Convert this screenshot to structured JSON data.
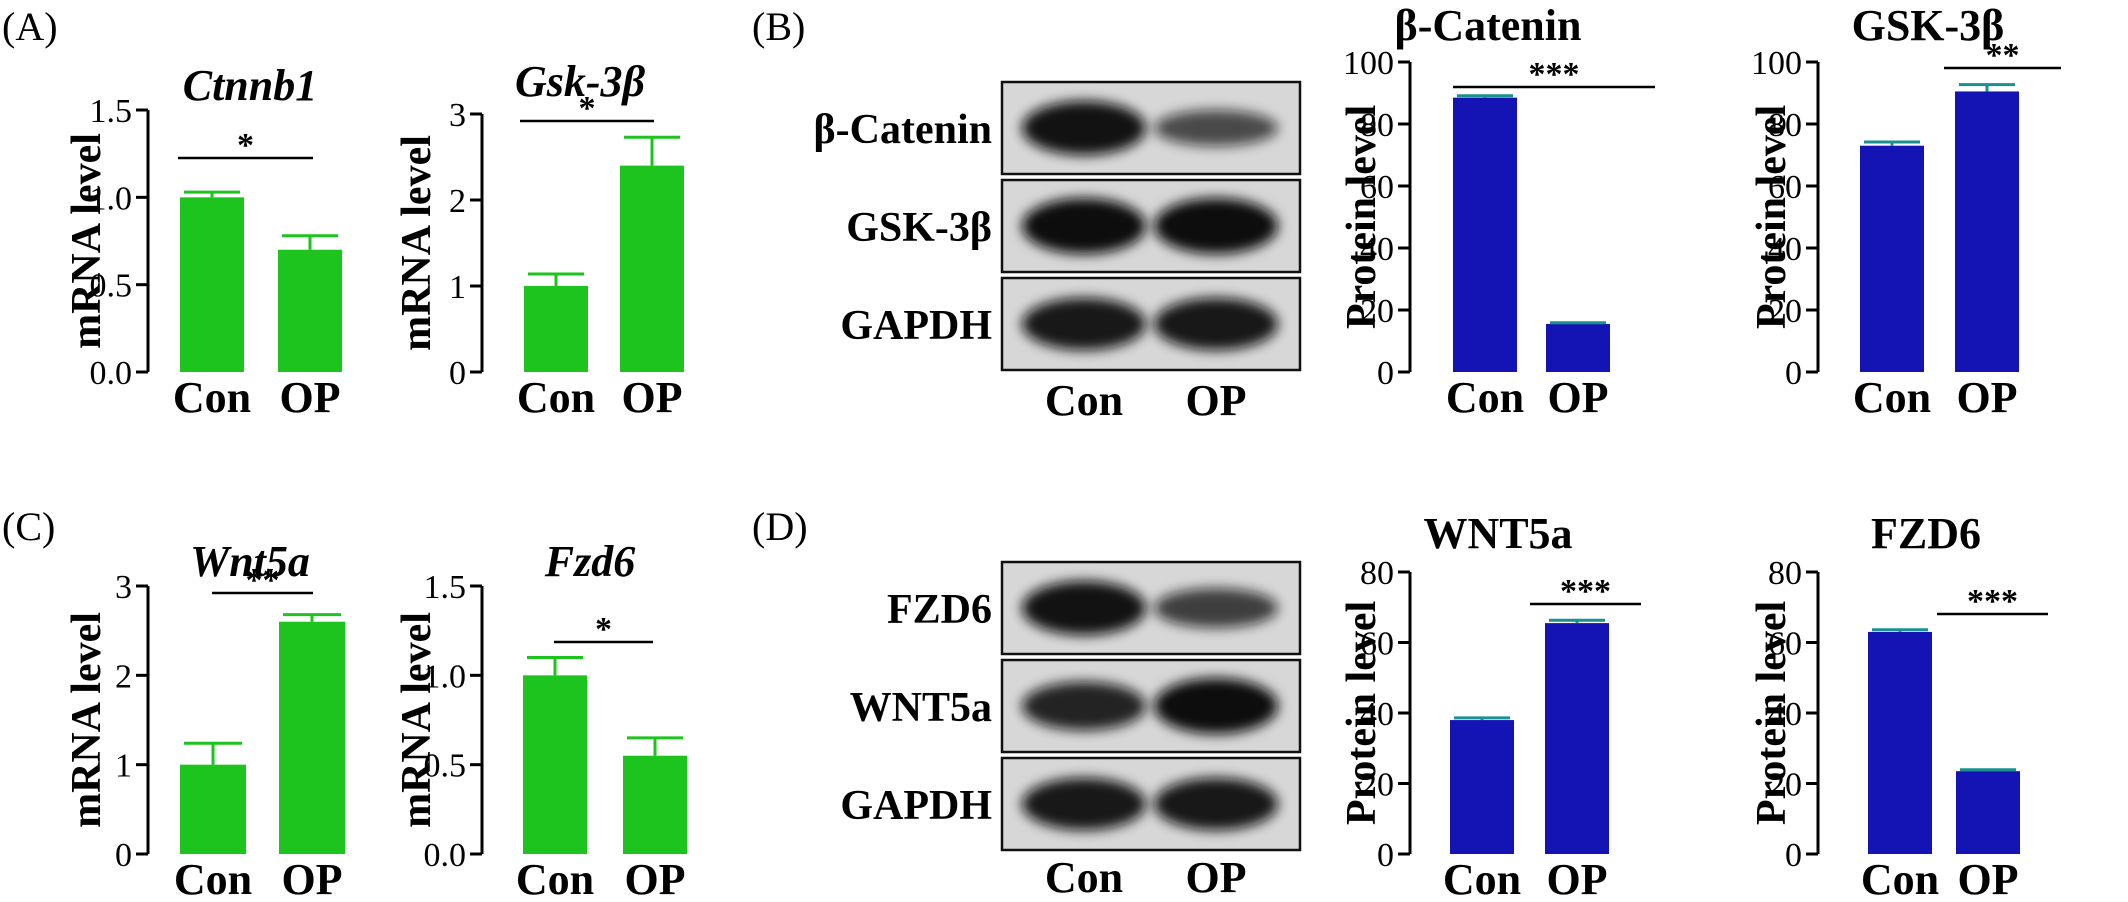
{
  "colors": {
    "mrna_bar": "#1ec41e",
    "protein_bar": "#1414b4",
    "protein_errbar": "#1a9090",
    "axis": "#000000"
  },
  "panel_labels": {
    "A": "(A)",
    "B": "(B)",
    "C": "(C)",
    "D": "(D)"
  },
  "chart_data": [
    {
      "id": "ctnnb1",
      "type": "bar",
      "panel": "A",
      "title": "Ctnnb1",
      "title_italic": true,
      "xlabel": "",
      "ylabel": "mRNA level",
      "categories": [
        "Con",
        "OP"
      ],
      "values": [
        1.0,
        0.7
      ],
      "errors": [
        0.03,
        0.08
      ],
      "ylim": [
        0,
        1.5
      ],
      "yticks": [
        "0.0",
        "0.5",
        "1.0",
        "1.5"
      ],
      "significance": "*",
      "color": "#1ec41e"
    },
    {
      "id": "gsk3b",
      "type": "bar",
      "panel": "A",
      "title": "Gsk-3β",
      "title_italic": true,
      "xlabel": "",
      "ylabel": "mRNA level",
      "categories": [
        "Con",
        "OP"
      ],
      "values": [
        1.0,
        2.4
      ],
      "errors": [
        0.14,
        0.33
      ],
      "ylim": [
        0,
        3
      ],
      "yticks": [
        "0",
        "1",
        "2",
        "3"
      ],
      "significance": "*",
      "color": "#1ec41e"
    },
    {
      "id": "bcatenin-protein",
      "type": "bar",
      "panel": "B",
      "title": "β-Catenin",
      "title_italic": false,
      "xlabel": "",
      "ylabel": "Protein level",
      "categories": [
        "Con",
        "OP"
      ],
      "values": [
        88.5,
        15.5
      ],
      "errors": [
        0.6,
        0.4
      ],
      "ylim": [
        0,
        100
      ],
      "yticks": [
        "0",
        "20",
        "40",
        "60",
        "80",
        "100"
      ],
      "significance": "***",
      "color": "#1414b4"
    },
    {
      "id": "gsk3b-protein",
      "type": "bar",
      "panel": "B",
      "title": "GSK-3β",
      "title_italic": false,
      "xlabel": "",
      "ylabel": "Protein  level",
      "categories": [
        "Con",
        "OP"
      ],
      "values": [
        73,
        90.5
      ],
      "errors": [
        1.2,
        2.2
      ],
      "ylim": [
        0,
        100
      ],
      "yticks": [
        "0",
        "20",
        "40",
        "60",
        "80",
        "100"
      ],
      "significance": "**",
      "color": "#1414b4"
    },
    {
      "id": "wnt5a",
      "type": "bar",
      "panel": "C",
      "title": "Wnt5a",
      "title_italic": true,
      "xlabel": "",
      "ylabel": "mRNA level",
      "categories": [
        "Con",
        "OP"
      ],
      "values": [
        1.0,
        2.6
      ],
      "errors": [
        0.24,
        0.08
      ],
      "ylim": [
        0,
        3
      ],
      "yticks": [
        "0",
        "1",
        "2",
        "3"
      ],
      "significance": "**",
      "color": "#1ec41e"
    },
    {
      "id": "fzd6",
      "type": "bar",
      "panel": "C",
      "title": "Fzd6",
      "title_italic": true,
      "xlabel": "",
      "ylabel": "mRNA level",
      "categories": [
        "Con",
        "OP"
      ],
      "values": [
        1.0,
        0.55
      ],
      "errors": [
        0.1,
        0.1
      ],
      "ylim": [
        0,
        1.5
      ],
      "yticks": [
        "0.0",
        "0.5",
        "1.0",
        "1.5"
      ],
      "significance": "*",
      "color": "#1ec41e"
    },
    {
      "id": "wnt5a-protein",
      "type": "bar",
      "panel": "D",
      "title": "WNT5a",
      "title_italic": false,
      "xlabel": "",
      "ylabel": "Protein level",
      "categories": [
        "Con",
        "OP"
      ],
      "values": [
        38,
        65.5
      ],
      "errors": [
        0.6,
        0.8
      ],
      "ylim": [
        0,
        80
      ],
      "yticks": [
        "0",
        "20",
        "40",
        "60",
        "80"
      ],
      "significance": "***",
      "color": "#1414b4"
    },
    {
      "id": "fzd6-protein",
      "type": "bar",
      "panel": "D",
      "title": "FZD6",
      "title_italic": false,
      "xlabel": "",
      "ylabel": "Protein  level",
      "categories": [
        "Con",
        "OP"
      ],
      "values": [
        63,
        23.5
      ],
      "errors": [
        0.6,
        0.4
      ],
      "ylim": [
        0,
        80
      ],
      "yticks": [
        "0",
        "20",
        "40",
        "60",
        "80"
      ],
      "significance": "***",
      "color": "#1414b4"
    }
  ],
  "blots": {
    "B": {
      "bands": [
        {
          "label": "β-Catenin",
          "intensity": [
            0.95,
            0.45
          ]
        },
        {
          "label": "GSK-3β",
          "intensity": [
            1.0,
            1.0
          ]
        },
        {
          "label": "GAPDH",
          "intensity": [
            0.9,
            0.9
          ]
        }
      ],
      "lanes": [
        "Con",
        "OP"
      ]
    },
    "D": {
      "bands": [
        {
          "label": "FZD6",
          "intensity": [
            0.95,
            0.55
          ]
        },
        {
          "label": "WNT5a",
          "intensity": [
            0.8,
            1.0
          ]
        },
        {
          "label": "GAPDH",
          "intensity": [
            0.9,
            0.9
          ]
        }
      ],
      "lanes": [
        "Con",
        "OP"
      ]
    }
  }
}
